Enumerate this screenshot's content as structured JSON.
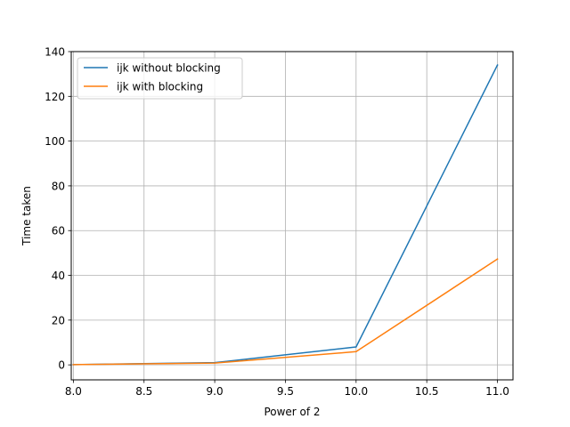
{
  "chart_data": {
    "type": "line",
    "title": "",
    "xlabel": "Power of 2",
    "ylabel": "Time taken",
    "x": [
      8,
      9,
      10,
      11
    ],
    "xlim": [
      7.985,
      11.11
    ],
    "ylim": [
      -6.7,
      140
    ],
    "xticks": [
      "8.0",
      "8.5",
      "9.0",
      "9.5",
      "10.0",
      "10.5",
      "11.0"
    ],
    "yticks": [
      "0",
      "20",
      "40",
      "60",
      "80",
      "100",
      "120",
      "140"
    ],
    "grid": true,
    "legend_position": "top-left",
    "series": [
      {
        "name": "ijk without blocking",
        "color": "#1f77b4",
        "values": [
          0.1,
          1.0,
          8.0,
          134.0
        ]
      },
      {
        "name": "ijk with blocking",
        "color": "#ff7f0e",
        "values": [
          0.1,
          0.8,
          5.9,
          47.3
        ]
      }
    ]
  }
}
